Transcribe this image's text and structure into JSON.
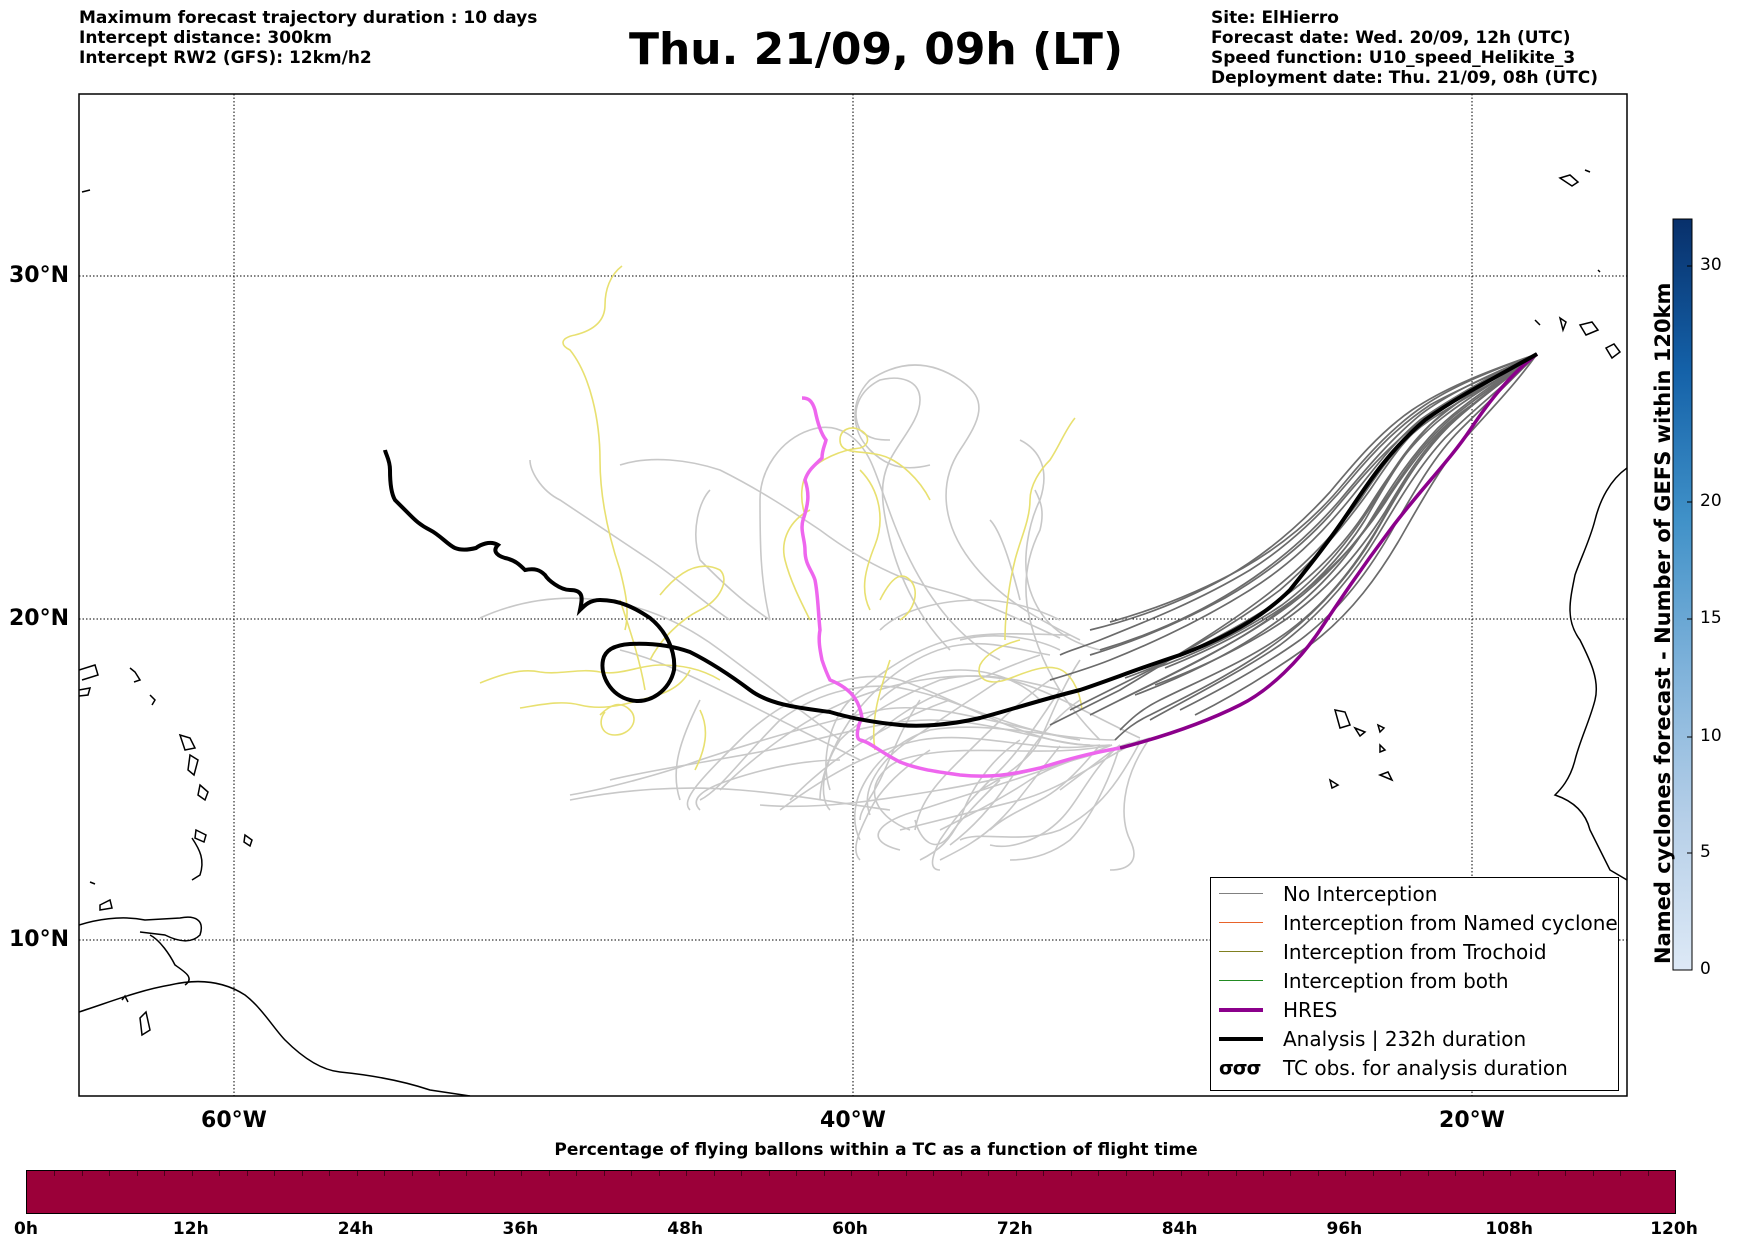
{
  "header": {
    "left": [
      "Maximum forecast trajectory duration : 10 days",
      "Intercept distance: 300km",
      "Intercept RW2 (GFS):  12km/h2"
    ],
    "title": "Thu. 21/09, 09h (LT)",
    "right": [
      "Site: ElHierro",
      "Forecast date: Wed. 20/09, 12h (UTC)",
      "Speed function: U10_speed_Helikite_3",
      "Deployment date: Thu. 21/09, 08h (UTC)"
    ]
  },
  "map": {
    "lat_labels": [
      "30°N",
      "20°N",
      "10°N"
    ],
    "lon_labels": [
      "60°W",
      "40°W",
      "20°W"
    ],
    "colors": {
      "ensemble": "#6b6b6b",
      "ensemble_light": "#c8c8c8",
      "yellow": "#e8e070",
      "hres": "#8b008b",
      "hres_light": "#ee66ee",
      "analysis": "#000000"
    }
  },
  "legend": {
    "items": [
      {
        "label": "No Interception",
        "color": "#808080"
      },
      {
        "label": "Interception from Named cyclone",
        "color": "#e8632a"
      },
      {
        "label": "Interception from Trochoid",
        "color": "#808020"
      },
      {
        "label": "Interception from both",
        "color": "#228b22"
      },
      {
        "label": "HRES",
        "color": "#8b008b"
      },
      {
        "label": "Analysis | 232h duration",
        "color": "#000000"
      },
      {
        "label": "TC obs. for analysis duration",
        "icon": "tc-obs-icon",
        "glyph": "σσσ"
      }
    ]
  },
  "colorbar": {
    "title": "Named cyclones forecast - Number of GEFS within 120km",
    "ticks": [
      "0",
      "5",
      "10",
      "15",
      "20",
      "30"
    ]
  },
  "percentage_bar": {
    "caption": "Percentage of flying ballons within a TC as a function of flight time",
    "color": "#9b0039",
    "ticks": [
      "0h",
      "12h",
      "24h",
      "36h",
      "48h",
      "60h",
      "72h",
      "84h",
      "96h",
      "108h",
      "120h"
    ]
  }
}
